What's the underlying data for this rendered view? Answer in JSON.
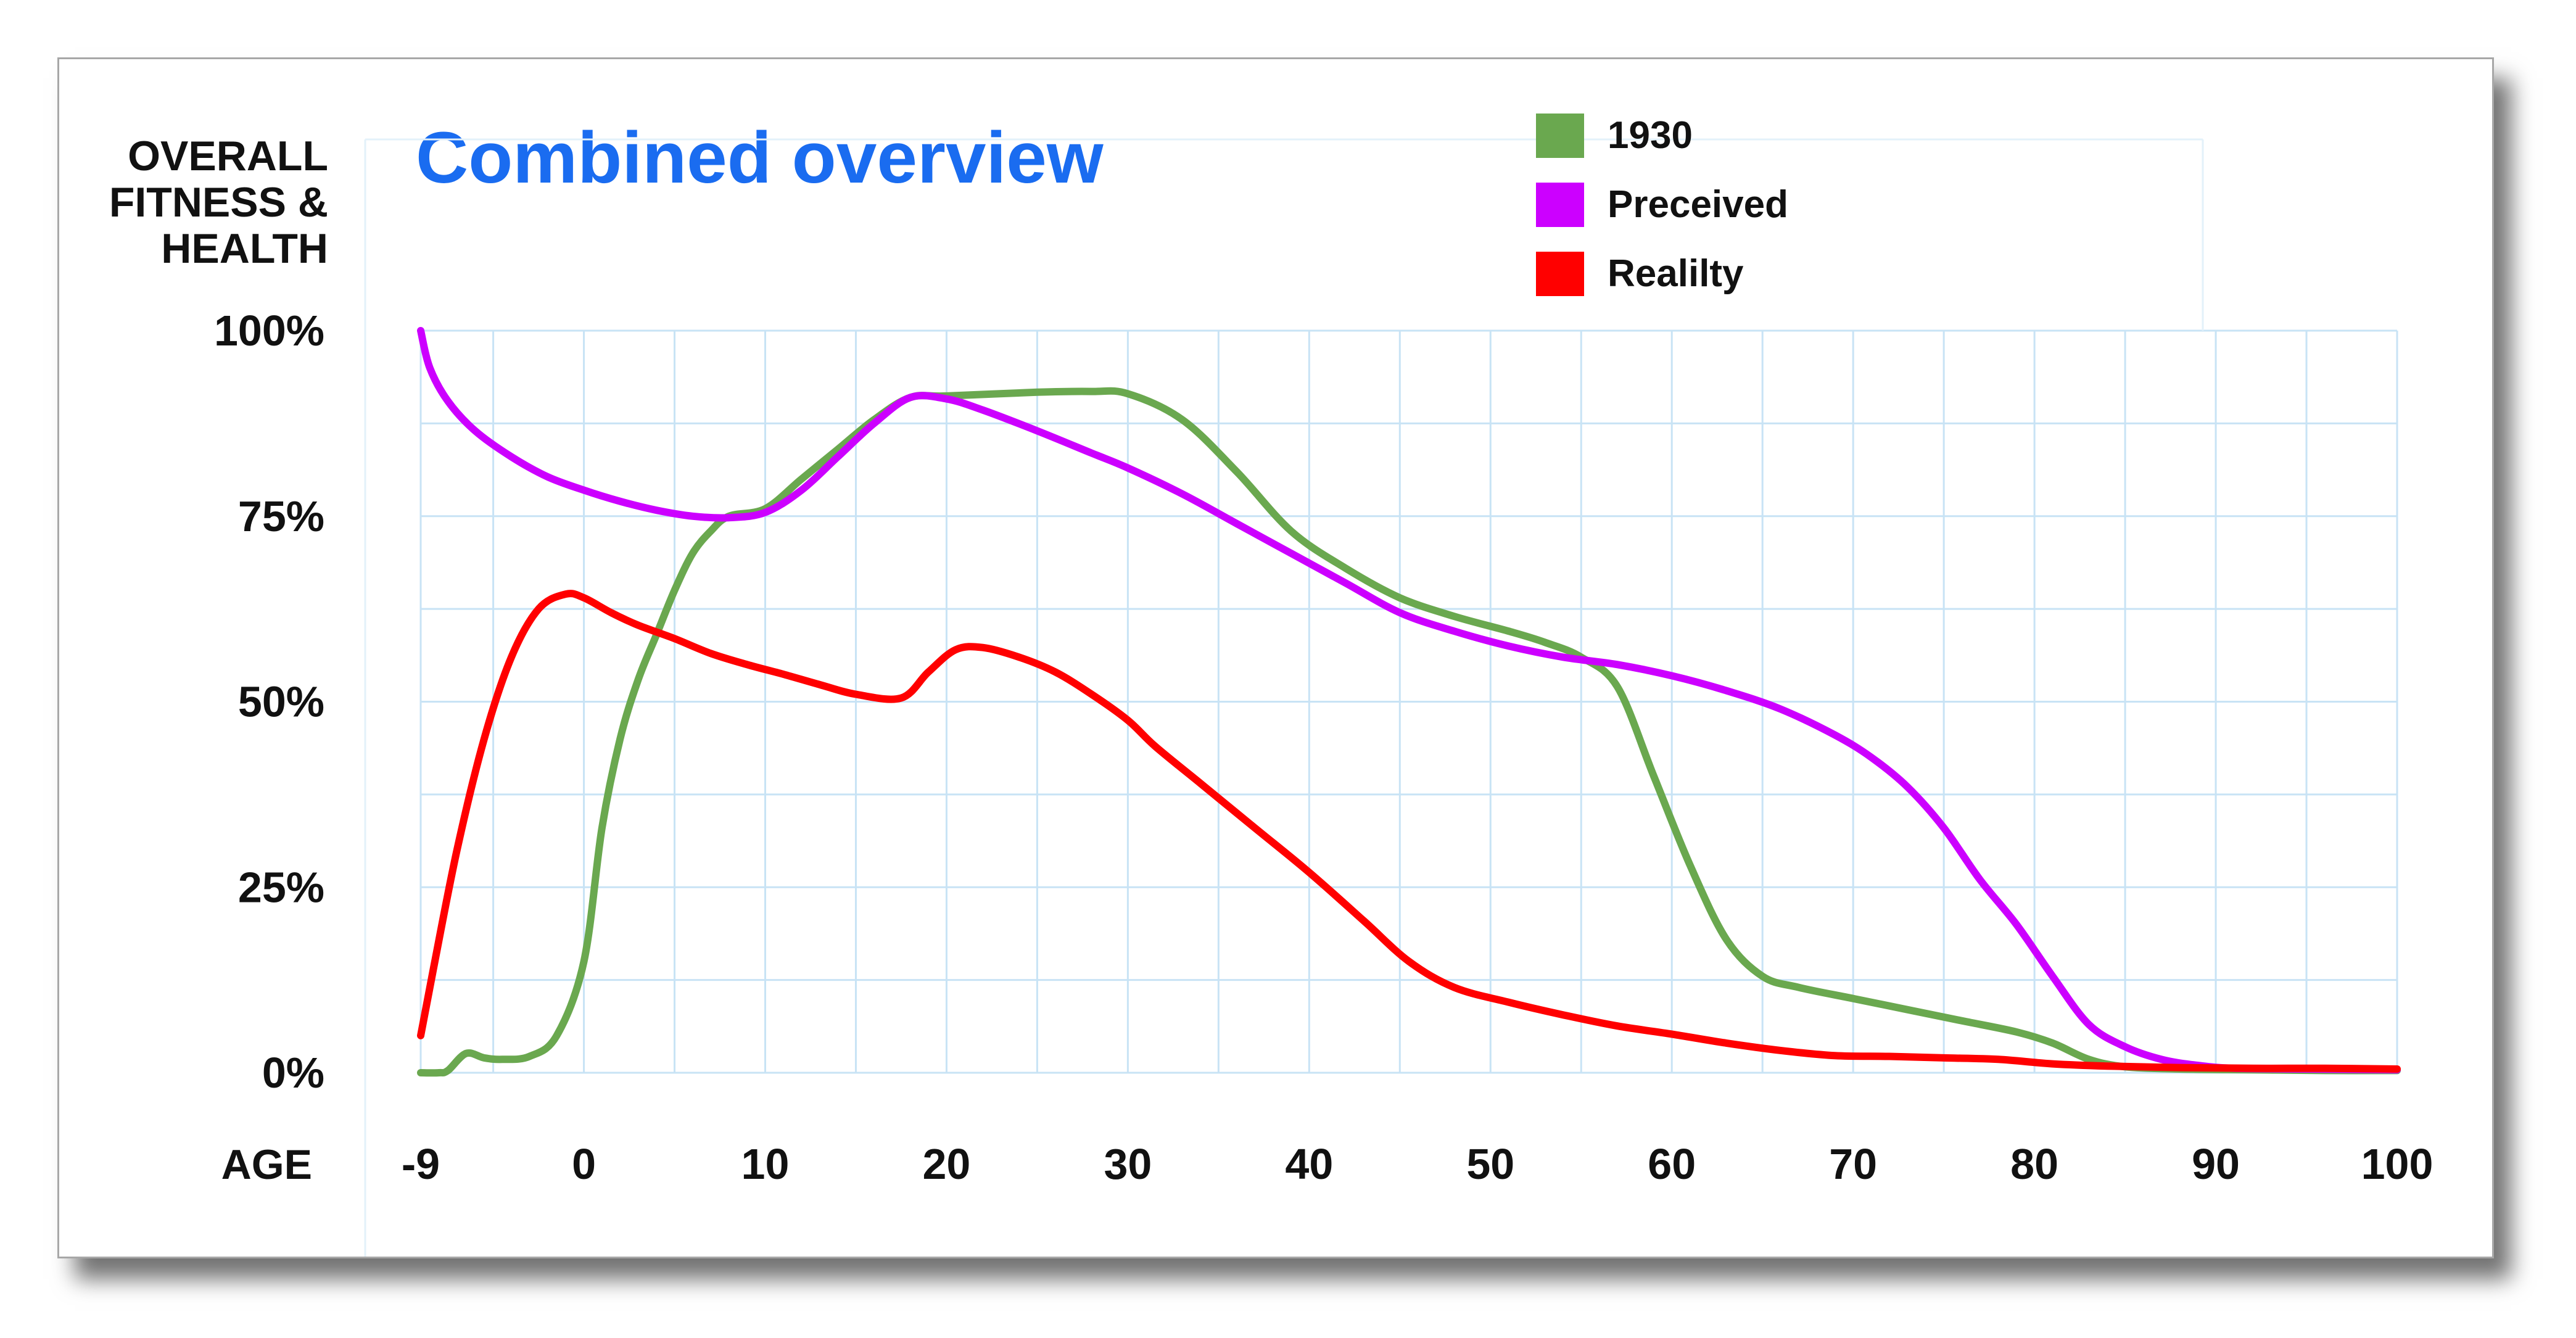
{
  "chart_data": {
    "type": "line",
    "title": "Combined overview",
    "ylabel": [
      "OVERALL",
      "FITNESS &",
      "HEALTH"
    ],
    "xlabel": "AGE",
    "xlim": [
      -9,
      100
    ],
    "ylim": [
      0,
      100
    ],
    "x_ticks": [
      -9,
      0,
      10,
      20,
      30,
      40,
      50,
      60,
      70,
      80,
      90,
      100
    ],
    "x_tick_labels": [
      "-9",
      "0",
      "10",
      "20",
      "30",
      "40",
      "50",
      "60",
      "70",
      "80",
      "90",
      "100"
    ],
    "y_ticks": [
      0,
      25,
      50,
      75,
      100
    ],
    "y_tick_labels": [
      "0%",
      "25%",
      "50%",
      "75%",
      "100%"
    ],
    "grid": true,
    "legend_position": "top-center",
    "colors": {
      "title": "#1a6cf0",
      "grid": "#c8e3f5",
      "axis_text": "#111111"
    },
    "series": [
      {
        "name": "1930",
        "color": "#6aa84f",
        "points": [
          [
            -9,
            0
          ],
          [
            -8,
            0
          ],
          [
            -7.5,
            0.3
          ],
          [
            -6.5,
            2.6
          ],
          [
            -5.5,
            2
          ],
          [
            -4.5,
            1.8
          ],
          [
            -3,
            2.2
          ],
          [
            -1.5,
            5
          ],
          [
            0,
            15
          ],
          [
            1,
            33
          ],
          [
            2,
            45
          ],
          [
            3,
            53
          ],
          [
            4,
            59
          ],
          [
            5,
            65
          ],
          [
            6,
            70
          ],
          [
            7,
            73
          ],
          [
            8,
            75
          ],
          [
            10,
            76
          ],
          [
            12,
            80
          ],
          [
            14,
            84
          ],
          [
            16,
            88
          ],
          [
            18,
            91
          ],
          [
            20,
            91.2
          ],
          [
            25,
            91.7
          ],
          [
            28,
            91.8
          ],
          [
            30,
            91.5
          ],
          [
            33,
            88
          ],
          [
            36,
            81
          ],
          [
            39,
            73
          ],
          [
            42,
            68
          ],
          [
            45,
            64
          ],
          [
            48,
            61.5
          ],
          [
            51,
            59.5
          ],
          [
            53,
            58
          ],
          [
            55,
            56
          ],
          [
            57,
            52
          ],
          [
            59,
            40
          ],
          [
            61,
            28
          ],
          [
            63,
            18
          ],
          [
            65,
            13
          ],
          [
            67,
            11.5
          ],
          [
            70,
            10
          ],
          [
            73,
            8.5
          ],
          [
            76,
            7
          ],
          [
            79,
            5.5
          ],
          [
            81,
            4
          ],
          [
            83,
            1.8
          ],
          [
            85,
            0.8
          ],
          [
            88,
            0.5
          ],
          [
            92,
            0.4
          ],
          [
            96,
            0.3
          ],
          [
            100,
            0.3
          ]
        ]
      },
      {
        "name": "Preceived",
        "color": "#cc00ff",
        "points": [
          [
            -9,
            100
          ],
          [
            -8.5,
            95
          ],
          [
            -7.5,
            90.5
          ],
          [
            -6,
            86.5
          ],
          [
            -4,
            83
          ],
          [
            -2,
            80.3
          ],
          [
            0,
            78.5
          ],
          [
            2,
            77
          ],
          [
            4,
            75.8
          ],
          [
            6,
            75
          ],
          [
            8,
            74.8
          ],
          [
            10,
            75.5
          ],
          [
            12,
            78.5
          ],
          [
            14,
            83
          ],
          [
            16,
            87.5
          ],
          [
            18,
            91
          ],
          [
            20,
            90.8
          ],
          [
            22,
            89.3
          ],
          [
            25,
            86.5
          ],
          [
            28,
            83.5
          ],
          [
            30,
            81.5
          ],
          [
            33,
            78
          ],
          [
            36,
            74
          ],
          [
            39,
            70
          ],
          [
            42,
            66
          ],
          [
            45,
            62
          ],
          [
            48,
            59.5
          ],
          [
            51,
            57.5
          ],
          [
            54,
            56
          ],
          [
            57,
            55
          ],
          [
            60,
            53.5
          ],
          [
            63,
            51.5
          ],
          [
            66,
            49
          ],
          [
            69,
            45.5
          ],
          [
            71,
            42.5
          ],
          [
            73,
            38.5
          ],
          [
            75,
            33
          ],
          [
            77,
            26
          ],
          [
            79,
            20
          ],
          [
            81,
            13
          ],
          [
            83,
            6.5
          ],
          [
            85,
            3.5
          ],
          [
            87,
            1.8
          ],
          [
            89,
            1
          ],
          [
            91,
            0.6
          ],
          [
            95,
            0.5
          ],
          [
            100,
            0.4
          ]
        ]
      },
      {
        "name": "Realilty",
        "color": "#ff0000",
        "points": [
          [
            -9,
            5
          ],
          [
            -8.3,
            14
          ],
          [
            -7,
            30
          ],
          [
            -5.5,
            45
          ],
          [
            -4,
            56
          ],
          [
            -2.5,
            62.5
          ],
          [
            -1,
            64.5
          ],
          [
            0,
            64
          ],
          [
            1.5,
            62
          ],
          [
            3,
            60.3
          ],
          [
            5,
            58.5
          ],
          [
            7,
            56.5
          ],
          [
            9,
            55
          ],
          [
            11,
            53.7
          ],
          [
            13,
            52.3
          ],
          [
            15,
            51
          ],
          [
            17.5,
            50.5
          ],
          [
            19,
            54
          ],
          [
            20.5,
            57
          ],
          [
            22,
            57.3
          ],
          [
            24,
            56
          ],
          [
            26,
            54
          ],
          [
            28,
            51
          ],
          [
            30,
            47.5
          ],
          [
            31.5,
            44
          ],
          [
            34,
            39
          ],
          [
            37,
            33
          ],
          [
            40,
            27
          ],
          [
            43,
            20.5
          ],
          [
            45.5,
            15
          ],
          [
            48,
            11.5
          ],
          [
            51,
            9.5
          ],
          [
            54,
            7.8
          ],
          [
            57,
            6.3
          ],
          [
            60,
            5.2
          ],
          [
            63,
            4
          ],
          [
            66,
            3
          ],
          [
            69,
            2.3
          ],
          [
            72,
            2.2
          ],
          [
            75,
            2
          ],
          [
            78,
            1.8
          ],
          [
            81,
            1.2
          ],
          [
            84,
            0.9
          ],
          [
            88,
            0.7
          ],
          [
            92,
            0.6
          ],
          [
            96,
            0.6
          ],
          [
            100,
            0.5
          ]
        ]
      }
    ]
  }
}
